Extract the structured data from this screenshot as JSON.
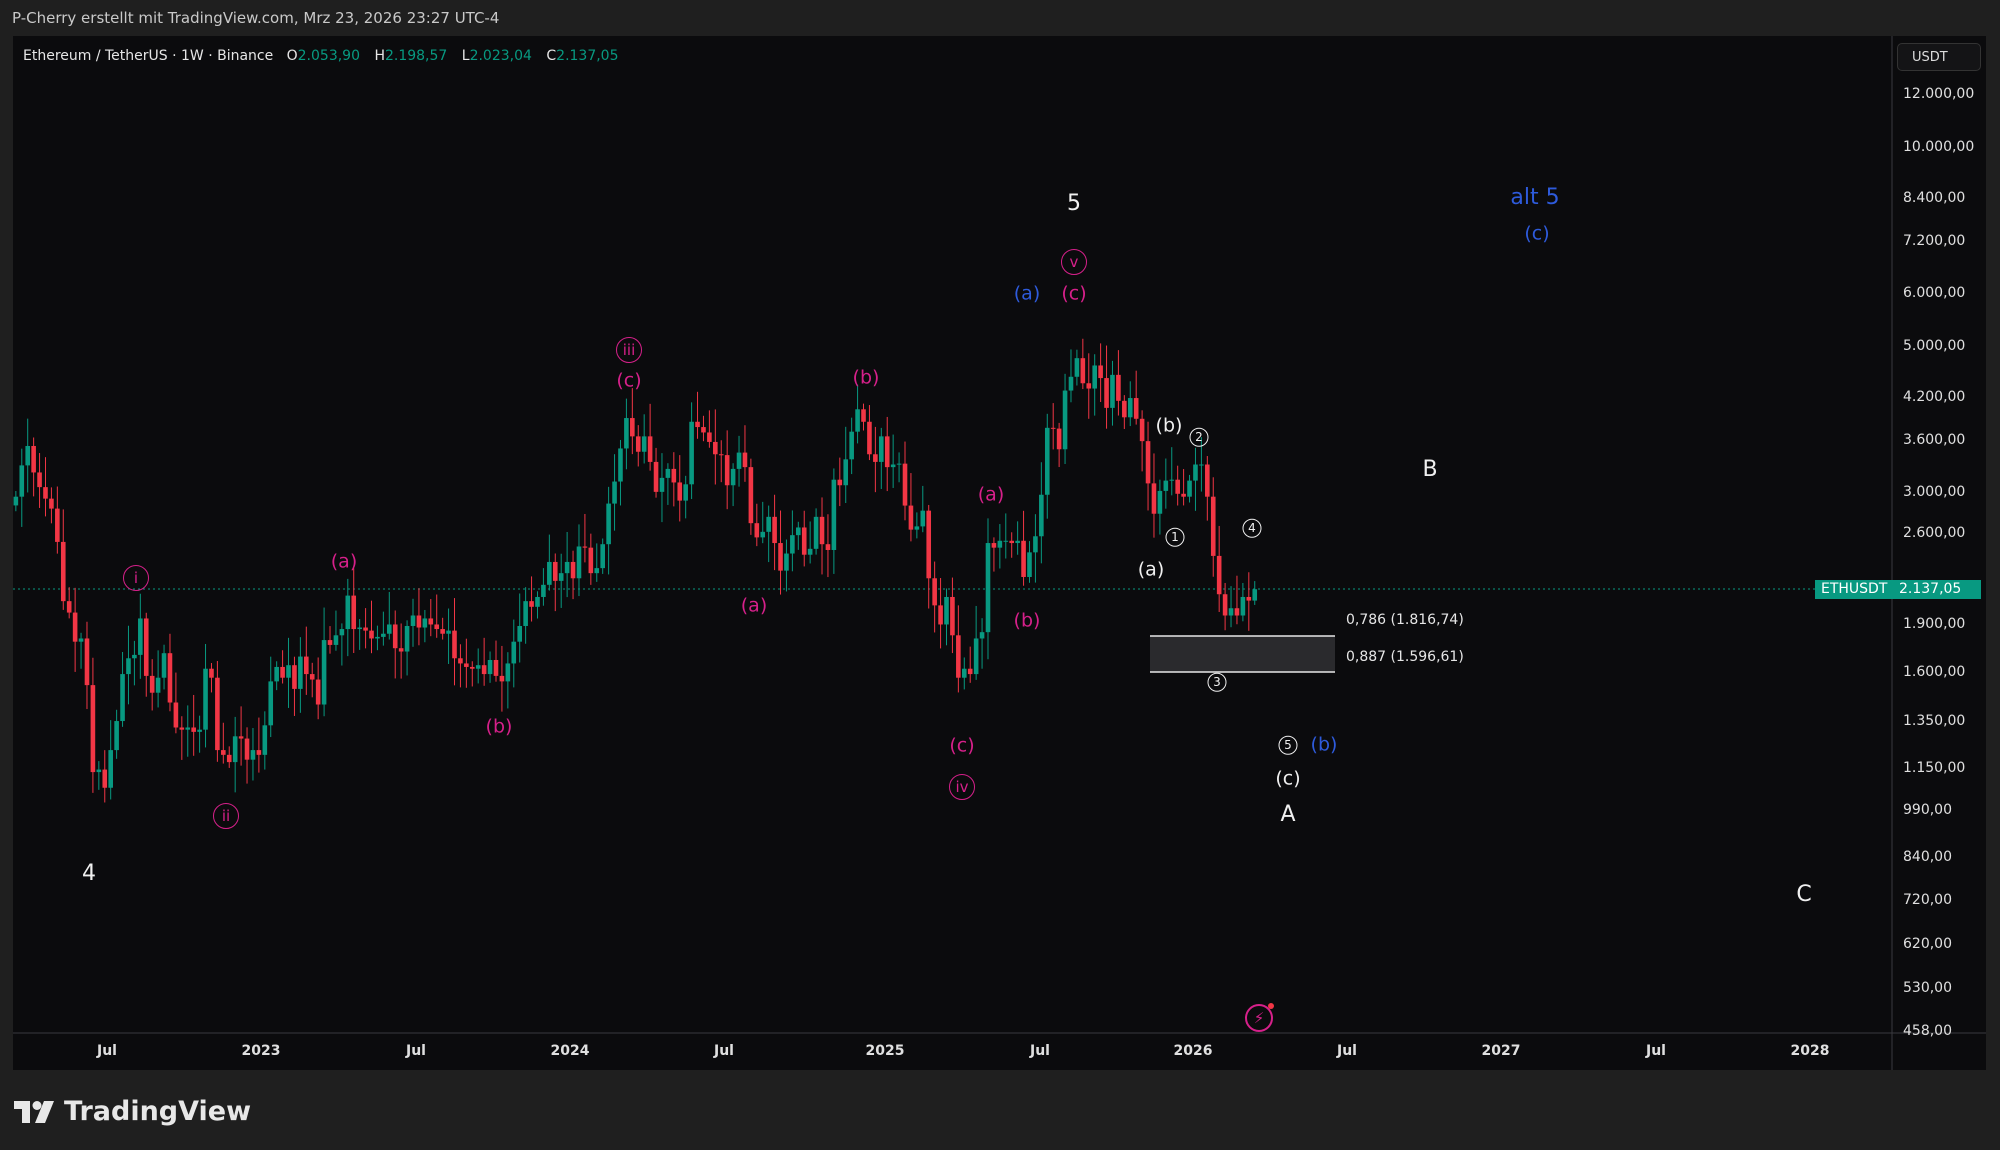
{
  "topbar": {
    "caption": "P-Cherry erstellt mit TradingView.com, Mrz 23, 2026 23:27 UTC-4"
  },
  "legend": {
    "symbol": "Ethereum / TetherUS · 1W · Binance",
    "o_label": "O",
    "o": "2.053,90",
    "h_label": "H",
    "h": "2.198,57",
    "l_label": "L",
    "l": "2.023,04",
    "c_label": "C",
    "c": "2.137,05"
  },
  "price_axis": {
    "currency": "USDT",
    "ticks": [
      "12.000,00",
      "10.000,00",
      "8.400,00",
      "7.200,00",
      "6.000,00",
      "5.000,00",
      "4.200,00",
      "3.600,00",
      "3.000,00",
      "2.600,00",
      "1.900,00",
      "1.600,00",
      "1.350,00",
      "1.150,00",
      "990,00",
      "840,00",
      "720,00",
      "620,00",
      "530,00",
      "458,00"
    ],
    "last_symbol": "ETHUSDT",
    "last_price": "2.137,05"
  },
  "time_axis": {
    "ticks": [
      "Jul",
      "2023",
      "Jul",
      "2024",
      "Jul",
      "2025",
      "Jul",
      "2026",
      "Jul",
      "2027",
      "Jul",
      "2028"
    ]
  },
  "colors": {
    "up": "#089981",
    "down": "#f23645",
    "wave_pink": "#d6208a",
    "wave_blue": "#2e5bdc",
    "wave_white": "#f0f0f0"
  },
  "annotations": {
    "w4": "4",
    "i": "i",
    "ii": "ii",
    "a1": "(a)",
    "b1": "(b)",
    "iii": "iii",
    "c1": "(c)",
    "a2": "(a)",
    "b2": "(b)",
    "a3": "(a)",
    "b3": "(b)",
    "c3": "(c)",
    "iv": "iv",
    "v": "v",
    "c4": "(c)",
    "a_blue": "(a)",
    "w5": "5",
    "alt5": "alt 5",
    "c_blue": "(c)",
    "b_white": "(b)",
    "n1": "1",
    "n2": "2",
    "n3": "3",
    "n4": "4",
    "n5": "5",
    "a_white": "(a)",
    "b_blue": "(b)",
    "c_white": "(c)",
    "A": "A",
    "B": "B",
    "C": "C"
  },
  "fib": {
    "level1": "0,786 (1.816,74)",
    "level2": "0,887 (1.596,61)"
  },
  "branding": {
    "logo": "TradingView"
  },
  "chart_data": {
    "type": "candlestick",
    "symbol": "ETHUSDT",
    "interval": "1W",
    "scale": "log",
    "ylim": [
      458,
      12000
    ],
    "first_week": "2022-03-14",
    "close": [
      2950,
      3290,
      3520,
      3210,
      3050,
      2930,
      2830,
      2520,
      2050,
      1970,
      1780,
      1800,
      1530,
      1130,
      1140,
      1070,
      1220,
      1350,
      1590,
      1680,
      1700,
      1930,
      1580,
      1490,
      1570,
      1710,
      1440,
      1320,
      1310,
      1320,
      1300,
      1310,
      1620,
      1570,
      1220,
      1200,
      1170,
      1280,
      1270,
      1180,
      1220,
      1200,
      1330,
      1550,
      1630,
      1570,
      1640,
      1510,
      1690,
      1590,
      1560,
      1430,
      1790,
      1760,
      1820,
      1860,
      2090,
      1860,
      1870,
      1850,
      1800,
      1810,
      1830,
      1890,
      1740,
      1720,
      1880,
      1950,
      1870,
      1930,
      1890,
      1860,
      1830,
      1850,
      1680,
      1650,
      1630,
      1620,
      1640,
      1590,
      1670,
      1580,
      1550,
      1650,
      1780,
      1880,
      2050,
      2010,
      2080,
      2170,
      2350,
      2200,
      2260,
      2350,
      2220,
      2480,
      2470,
      2260,
      2300,
      2500,
      2880,
      3110,
      3490,
      3880,
      3640,
      3450,
      3640,
      3330,
      3000,
      3150,
      3250,
      3100,
      2910,
      3080,
      3830,
      3760,
      3690,
      3570,
      3420,
      3410,
      3070,
      3250,
      3440,
      3270,
      2690,
      2560,
      2610,
      2750,
      2510,
      2280,
      2420,
      2580,
      2650,
      2410,
      2460,
      2750,
      2500,
      2450,
      3130,
      3070,
      3360,
      3700,
      4000,
      3830,
      3420,
      3330,
      3640,
      3270,
      3300,
      3310,
      2860,
      2630,
      2660,
      2810,
      2220,
      2020,
      1890,
      2080,
      1820,
      1570,
      1620,
      1590,
      1800,
      1840,
      2510,
      2470,
      2530,
      2530,
      2510,
      2530,
      2230,
      2430,
      2570,
      2970,
      3750,
      3740,
      3480,
      4270,
      4480,
      4780,
      4380,
      4300,
      4660,
      4460,
      4020,
      4510,
      4120,
      3890,
      4160,
      3870,
      3580,
      3090,
      2780,
      3010,
      3120,
      3130,
      2980,
      2950,
      3120,
      3300,
      3300,
      2950,
      2400,
      2100,
      1950,
      2000,
      1950,
      2080,
      2054,
      2137.05
    ],
    "last": {
      "open": 2053.9,
      "high": 2198.57,
      "low": 2023.04,
      "close": 2137.05
    },
    "fib_zone": {
      "upper": 1816.74,
      "lower": 1596.61
    }
  }
}
